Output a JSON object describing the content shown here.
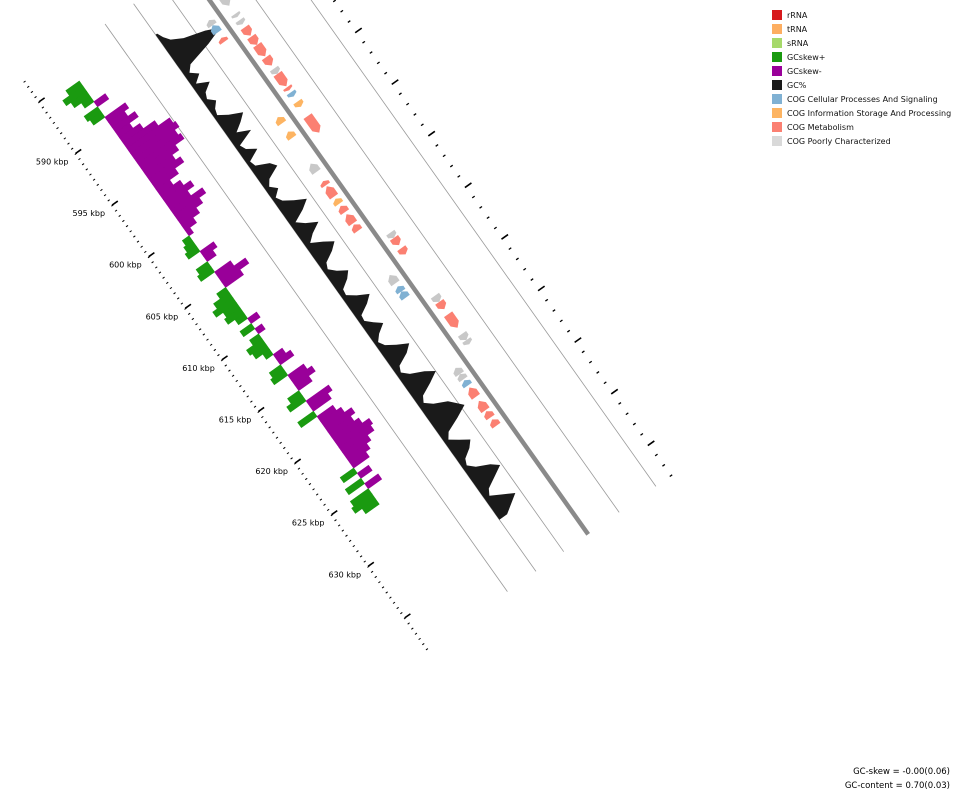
{
  "legend": {
    "items": [
      {
        "label": "rRNA",
        "color": "#d7191c"
      },
      {
        "label": "tRNA",
        "color": "#fdae61"
      },
      {
        "label": "sRNA",
        "color": "#a6d96a"
      },
      {
        "label": "GCskew+",
        "color": "#1a9a10"
      },
      {
        "label": "GCskew-",
        "color": "#990099"
      },
      {
        "label": "GC%",
        "color": "#1a1a1a"
      },
      {
        "label": "COG Cellular Processes And Signaling",
        "color": "#80b1d3"
      },
      {
        "label": "COG Information Storage And Processing",
        "color": "#fdb462"
      },
      {
        "label": "COG Metabolism",
        "color": "#fb8072"
      },
      {
        "label": "COG Poorly Characterized",
        "color": "#d9d9d9"
      }
    ]
  },
  "stats": {
    "gc_skew": "GC-skew = -0.00(0.06)",
    "gc_content": "GC-content = 0.70(0.03)"
  },
  "scale": {
    "ticks": [
      "590 kbp",
      "595 kbp",
      "600 kbp",
      "605 kbp",
      "610 kbp",
      "615 kbp",
      "620 kbp",
      "625 kbp",
      "630 kbp"
    ]
  },
  "colors": {
    "backbone": "#8a8a8a",
    "guide": "#9a9a9a",
    "gc_content": "#1a1a1a",
    "gc_skew_pos": "#1a9a10",
    "gc_skew_neg": "#990099",
    "cog_cps": "#80b1d3",
    "cog_isp": "#fdb462",
    "cog_met": "#fb8072",
    "cog_poor": "#c8c8c8"
  },
  "features": [
    {
      "kbp": 586.4,
      "len": 1.1,
      "strand": "+",
      "cog": "poor"
    },
    {
      "kbp": 587.5,
      "len": 0.5,
      "strand": "-",
      "cog": "poor"
    },
    {
      "kbp": 588.0,
      "len": 0.7,
      "strand": "-",
      "cog": "cps"
    },
    {
      "kbp": 588.3,
      "len": 0.3,
      "strand": "+",
      "cog": "poor"
    },
    {
      "kbp": 588.9,
      "len": 0.4,
      "strand": "+",
      "cog": "poor"
    },
    {
      "kbp": 589.2,
      "len": 0.4,
      "strand": "-",
      "cog": "met"
    },
    {
      "kbp": 589.6,
      "len": 0.8,
      "strand": "+",
      "cog": "met"
    },
    {
      "kbp": 590.5,
      "len": 0.8,
      "strand": "+",
      "cog": "met"
    },
    {
      "kbp": 591.3,
      "len": 1.1,
      "strand": "+",
      "cog": "met"
    },
    {
      "kbp": 592.5,
      "len": 0.8,
      "strand": "+",
      "cog": "met"
    },
    {
      "kbp": 593.6,
      "len": 0.5,
      "strand": "+",
      "cog": "poor"
    },
    {
      "kbp": 594.1,
      "len": 1.2,
      "strand": "+",
      "cog": "met"
    },
    {
      "kbp": 595.4,
      "len": 0.3,
      "strand": "+",
      "cog": "met"
    },
    {
      "kbp": 595.9,
      "len": 0.4,
      "strand": "+",
      "cog": "cps"
    },
    {
      "kbp": 596.9,
      "len": 0.6,
      "strand": "-",
      "cog": "isp"
    },
    {
      "kbp": 596.8,
      "len": 0.5,
      "strand": "+",
      "cog": "isp"
    },
    {
      "kbp": 598.3,
      "len": 0.6,
      "strand": "-",
      "cog": "isp"
    },
    {
      "kbp": 598.2,
      "len": 1.6,
      "strand": "+",
      "cog": "met"
    },
    {
      "kbp": 601.4,
      "len": 0.8,
      "strand": "-",
      "cog": "poor"
    },
    {
      "kbp": 602.0,
      "len": 0.2,
      "strand": "-",
      "cog": "poor"
    },
    {
      "kbp": 603.1,
      "len": 0.4,
      "strand": "-",
      "cog": "met"
    },
    {
      "kbp": 603.6,
      "len": 1.0,
      "strand": "-",
      "cog": "met"
    },
    {
      "kbp": 604.8,
      "len": 0.5,
      "strand": "-",
      "cog": "isp"
    },
    {
      "kbp": 605.5,
      "len": 0.6,
      "strand": "-",
      "cog": "met"
    },
    {
      "kbp": 606.3,
      "len": 0.9,
      "strand": "-",
      "cog": "met"
    },
    {
      "kbp": 607.3,
      "len": 0.6,
      "strand": "-",
      "cog": "met"
    },
    {
      "kbp": 609.5,
      "len": 0.5,
      "strand": "+",
      "cog": "poor"
    },
    {
      "kbp": 610.0,
      "len": 0.7,
      "strand": "+",
      "cog": "met"
    },
    {
      "kbp": 611.0,
      "len": 0.6,
      "strand": "+",
      "cog": "met"
    },
    {
      "kbp": 612.2,
      "len": 0.8,
      "strand": "-",
      "cog": "poor"
    },
    {
      "kbp": 613.3,
      "len": 0.5,
      "strand": "-",
      "cog": "cps"
    },
    {
      "kbp": 613.8,
      "len": 0.6,
      "strand": "-",
      "cog": "cps"
    },
    {
      "kbp": 615.6,
      "len": 0.6,
      "strand": "+",
      "cog": "poor"
    },
    {
      "kbp": 616.2,
      "len": 0.7,
      "strand": "+",
      "cog": "met"
    },
    {
      "kbp": 617.4,
      "len": 1.3,
      "strand": "+",
      "cog": "met"
    },
    {
      "kbp": 619.3,
      "len": 0.6,
      "strand": "+",
      "cog": "poor"
    },
    {
      "kbp": 619.9,
      "len": 0.4,
      "strand": "+",
      "cog": "poor"
    },
    {
      "kbp": 621.2,
      "len": 0.6,
      "strand": "-",
      "cog": "poor"
    },
    {
      "kbp": 621.8,
      "len": 0.5,
      "strand": "-",
      "cog": "poor"
    },
    {
      "kbp": 622.4,
      "len": 0.5,
      "strand": "-",
      "cog": "cps"
    },
    {
      "kbp": 623.1,
      "len": 0.9,
      "strand": "-",
      "cog": "met"
    },
    {
      "kbp": 624.4,
      "len": 0.9,
      "strand": "-",
      "cog": "met"
    },
    {
      "kbp": 625.4,
      "len": 0.6,
      "strand": "-",
      "cog": "met"
    },
    {
      "kbp": 626.2,
      "len": 0.6,
      "strand": "-",
      "cog": "met"
    }
  ],
  "gc_content": [
    [
      586.0,
      0.02
    ],
    [
      586.5,
      0.05
    ],
    [
      587.0,
      0.1
    ],
    [
      587.5,
      0.22
    ],
    [
      588.0,
      0.45
    ],
    [
      588.5,
      0.6
    ],
    [
      589.0,
      0.4
    ],
    [
      589.5,
      0.12
    ],
    [
      590.0,
      0.06
    ],
    [
      590.5,
      0.14
    ],
    [
      591.0,
      0.05
    ],
    [
      591.5,
      0.18
    ],
    [
      592.0,
      0.08
    ],
    [
      592.5,
      0.05
    ],
    [
      593.0,
      0.12
    ],
    [
      593.5,
      0.06
    ],
    [
      594.0,
      0.04
    ],
    [
      594.5,
      0.14
    ],
    [
      595.0,
      0.28
    ],
    [
      595.5,
      0.2
    ],
    [
      596.0,
      0.1
    ],
    [
      596.5,
      0.24
    ],
    [
      597.0,
      0.05
    ],
    [
      597.5,
      0.08
    ],
    [
      598.0,
      0.18
    ],
    [
      598.5,
      0.04
    ],
    [
      599.0,
      0.06
    ],
    [
      599.5,
      0.2
    ],
    [
      600.0,
      0.25
    ],
    [
      600.5,
      0.1
    ],
    [
      601.0,
      0.05
    ],
    [
      601.5,
      0.12
    ],
    [
      602.0,
      0.04
    ],
    [
      602.5,
      0.08
    ],
    [
      603.0,
      0.18
    ],
    [
      603.5,
      0.3
    ],
    [
      604.0,
      0.2
    ],
    [
      604.5,
      0.06
    ],
    [
      605.0,
      0.14
    ],
    [
      605.5,
      0.26
    ],
    [
      606.0,
      0.14
    ],
    [
      606.5,
      0.06
    ],
    [
      607.0,
      0.18
    ],
    [
      607.5,
      0.28
    ],
    [
      608.0,
      0.2
    ],
    [
      608.5,
      0.08
    ],
    [
      609.0,
      0.05
    ],
    [
      609.5,
      0.12
    ],
    [
      610.0,
      0.22
    ],
    [
      610.5,
      0.16
    ],
    [
      611.0,
      0.06
    ],
    [
      611.5,
      0.05
    ],
    [
      612.0,
      0.14
    ],
    [
      612.5,
      0.26
    ],
    [
      613.0,
      0.18
    ],
    [
      613.5,
      0.06
    ],
    [
      614.0,
      0.05
    ],
    [
      614.5,
      0.12
    ],
    [
      615.0,
      0.2
    ],
    [
      615.5,
      0.1
    ],
    [
      616.0,
      0.04
    ],
    [
      616.5,
      0.08
    ],
    [
      617.0,
      0.18
    ],
    [
      617.5,
      0.3
    ],
    [
      618.0,
      0.22
    ],
    [
      618.5,
      0.08
    ],
    [
      619.0,
      0.05
    ],
    [
      619.5,
      0.12
    ],
    [
      620.0,
      0.26
    ],
    [
      620.5,
      0.36
    ],
    [
      621.0,
      0.24
    ],
    [
      621.5,
      0.1
    ],
    [
      622.0,
      0.06
    ],
    [
      622.5,
      0.14
    ],
    [
      623.0,
      0.28
    ],
    [
      623.5,
      0.34
    ],
    [
      624.0,
      0.4
    ],
    [
      624.5,
      0.26
    ],
    [
      625.0,
      0.1
    ],
    [
      625.5,
      0.05
    ],
    [
      626.0,
      0.14
    ],
    [
      626.5,
      0.24
    ],
    [
      627.0,
      0.18
    ],
    [
      627.5,
      0.08
    ],
    [
      628.0,
      0.05
    ],
    [
      628.5,
      0.12
    ],
    [
      629.0,
      0.26
    ],
    [
      629.5,
      0.34
    ],
    [
      630.0,
      0.22
    ],
    [
      630.5,
      0.1
    ],
    [
      631.0,
      0.06
    ],
    [
      631.5,
      0.18
    ],
    [
      632.0,
      0.3
    ],
    [
      632.5,
      0.2
    ],
    [
      633.0,
      0.1
    ]
  ],
  "gc_skew": [
    [
      585.5,
      0.3
    ],
    [
      586.0,
      0.45
    ],
    [
      586.5,
      0.35
    ],
    [
      587.0,
      0.2
    ],
    [
      587.5,
      -0.25
    ],
    [
      588.0,
      0.3
    ],
    [
      588.5,
      0.25
    ],
    [
      589.0,
      -0.45
    ],
    [
      589.5,
      -0.35
    ],
    [
      590.0,
      -0.5
    ],
    [
      590.5,
      -0.3
    ],
    [
      591.0,
      -0.45
    ],
    [
      591.5,
      -0.7
    ],
    [
      592.0,
      -0.95
    ],
    [
      592.5,
      -1.0
    ],
    [
      593.0,
      -0.9
    ],
    [
      593.5,
      -0.95
    ],
    [
      594.0,
      -0.75
    ],
    [
      594.5,
      -0.6
    ],
    [
      595.0,
      -0.7
    ],
    [
      595.5,
      -0.5
    ],
    [
      596.0,
      -0.3
    ],
    [
      596.5,
      -0.45
    ],
    [
      597.0,
      -0.6
    ],
    [
      597.5,
      -0.45
    ],
    [
      598.0,
      -0.7
    ],
    [
      598.5,
      -0.55
    ],
    [
      599.0,
      -0.4
    ],
    [
      599.5,
      -0.25
    ],
    [
      600.0,
      -0.1
    ],
    [
      600.5,
      0.15
    ],
    [
      601.0,
      0.2
    ],
    [
      601.5,
      0.25
    ],
    [
      602.0,
      -0.3
    ],
    [
      602.5,
      -0.2
    ],
    [
      603.0,
      0.25
    ],
    [
      603.5,
      0.3
    ],
    [
      604.0,
      -0.35
    ],
    [
      604.5,
      -0.6
    ],
    [
      605.0,
      -0.4
    ],
    [
      605.5,
      0.2
    ],
    [
      606.0,
      0.35
    ],
    [
      606.5,
      0.45
    ],
    [
      607.0,
      0.3
    ],
    [
      607.5,
      0.35
    ],
    [
      608.0,
      0.2
    ],
    [
      608.5,
      -0.2
    ],
    [
      609.0,
      0.25
    ],
    [
      609.5,
      -0.15
    ],
    [
      610.0,
      0.2
    ],
    [
      610.5,
      0.35
    ],
    [
      611.0,
      0.3
    ],
    [
      611.5,
      0.15
    ],
    [
      612.0,
      -0.2
    ],
    [
      612.5,
      -0.3
    ],
    [
      613.0,
      0.25
    ],
    [
      613.5,
      0.3
    ],
    [
      614.0,
      -0.35
    ],
    [
      614.5,
      -0.45
    ],
    [
      615.0,
      -0.3
    ],
    [
      615.5,
      0.25
    ],
    [
      616.0,
      0.35
    ],
    [
      616.5,
      -0.5
    ],
    [
      617.0,
      -0.4
    ],
    [
      617.5,
      0.35
    ],
    [
      618.0,
      -0.35
    ],
    [
      618.5,
      -0.45
    ],
    [
      619.0,
      -0.6
    ],
    [
      619.5,
      -0.5
    ],
    [
      620.0,
      -0.6
    ],
    [
      620.5,
      -0.75
    ],
    [
      621.0,
      -0.7
    ],
    [
      621.5,
      -0.55
    ],
    [
      622.0,
      -0.45
    ],
    [
      622.5,
      -0.35
    ],
    [
      623.0,
      0.3
    ],
    [
      623.5,
      -0.25
    ],
    [
      624.0,
      0.35
    ],
    [
      624.5,
      -0.3
    ],
    [
      625.0,
      0.4
    ],
    [
      625.5,
      0.45
    ],
    [
      626.0,
      0.3
    ],
    [
      626.5,
      0.25
    ]
  ]
}
